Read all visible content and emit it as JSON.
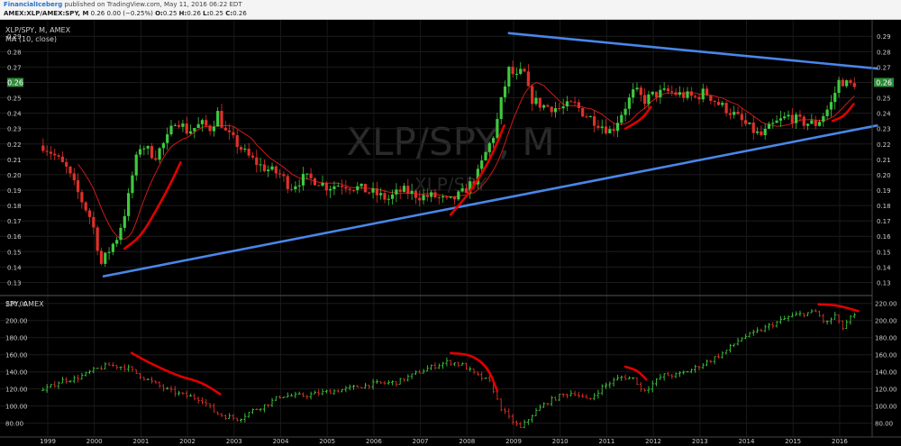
{
  "header": {
    "author": "FinancialIceberg",
    "published": "published on TradingView.com, May 11, 2016 06:22 EDT",
    "symbol": "AMEX:XLP/AMEX:SPY, M",
    "quote": "0.26 0.00 (−0.25%)",
    "o_label": "O:",
    "o_value": "0.25",
    "h_label": "H:",
    "h_value": "0.26",
    "l_label": "L:",
    "l_value": "0.25",
    "c_label": "C:",
    "c_value": "0.26"
  },
  "colors": {
    "background": "#000000",
    "up": "#3ec93e",
    "down": "#e0302a",
    "ma": "#d01818",
    "trendline": "#4a86e8",
    "annotation": "#e00000",
    "axis_text": "#cccccc",
    "price_tag": "#2e8b3a"
  },
  "chart_data": [
    {
      "type": "candlestick",
      "title": "XLP/SPY, M, AMEX",
      "subtitle": "MA (10, close)",
      "watermark": "XLP/SPY, M",
      "watermark_sub": "XLP/SPY",
      "y_ticks": [
        "0.13",
        "0.14",
        "0.15",
        "0.16",
        "0.17",
        "0.18",
        "0.19",
        "0.20",
        "0.21",
        "0.22",
        "0.23",
        "0.24",
        "0.25",
        "0.26",
        "0.27",
        "0.28",
        "0.29"
      ],
      "ylim": [
        0.125,
        0.296
      ],
      "last_price": "0.26",
      "x_ticks": [
        "1999",
        "2000",
        "2001",
        "2002",
        "2003",
        "2004",
        "2005",
        "2006",
        "2007",
        "2008",
        "2009",
        "2010",
        "2011",
        "2012",
        "2013",
        "2014",
        "2015",
        "2016"
      ],
      "series_anchors": [
        [
          1998.9,
          0.219
        ],
        [
          1999.1,
          0.214
        ],
        [
          1999.4,
          0.204
        ],
        [
          1999.7,
          0.185
        ],
        [
          1999.95,
          0.17
        ],
        [
          2000.15,
          0.142
        ],
        [
          2000.3,
          0.15
        ],
        [
          2000.5,
          0.16
        ],
        [
          2000.7,
          0.18
        ],
        [
          2000.85,
          0.205
        ],
        [
          2001.0,
          0.22
        ],
        [
          2001.3,
          0.212
        ],
        [
          2001.6,
          0.225
        ],
        [
          2001.75,
          0.237
        ],
        [
          2002.0,
          0.228
        ],
        [
          2002.3,
          0.233
        ],
        [
          2002.5,
          0.23
        ],
        [
          2002.65,
          0.24
        ],
        [
          2002.8,
          0.228
        ],
        [
          2003.0,
          0.222
        ],
        [
          2003.3,
          0.212
        ],
        [
          2003.6,
          0.205
        ],
        [
          2004.0,
          0.2
        ],
        [
          2004.2,
          0.192
        ],
        [
          2004.5,
          0.198
        ],
        [
          2004.8,
          0.196
        ],
        [
          2005.0,
          0.192
        ],
        [
          2005.3,
          0.194
        ],
        [
          2005.6,
          0.192
        ],
        [
          2006.0,
          0.188
        ],
        [
          2006.3,
          0.184
        ],
        [
          2006.6,
          0.19
        ],
        [
          2007.0,
          0.186
        ],
        [
          2007.3,
          0.186
        ],
        [
          2007.6,
          0.182
        ],
        [
          2007.9,
          0.188
        ],
        [
          2008.2,
          0.198
        ],
        [
          2008.4,
          0.214
        ],
        [
          2008.6,
          0.228
        ],
        [
          2008.75,
          0.25
        ],
        [
          2008.9,
          0.268
        ],
        [
          2009.1,
          0.262
        ],
        [
          2009.2,
          0.27
        ],
        [
          2009.35,
          0.25
        ],
        [
          2009.6,
          0.245
        ],
        [
          2010.0,
          0.243
        ],
        [
          2010.3,
          0.246
        ],
        [
          2010.5,
          0.24
        ],
        [
          2010.7,
          0.236
        ],
        [
          2011.1,
          0.228
        ],
        [
          2011.35,
          0.242
        ],
        [
          2011.6,
          0.255
        ],
        [
          2011.8,
          0.248
        ],
        [
          2012.0,
          0.252
        ],
        [
          2012.3,
          0.254
        ],
        [
          2012.6,
          0.252
        ],
        [
          2012.9,
          0.25
        ],
        [
          2013.1,
          0.254
        ],
        [
          2013.4,
          0.246
        ],
        [
          2013.7,
          0.24
        ],
        [
          2014.0,
          0.232
        ],
        [
          2014.3,
          0.225
        ],
        [
          2014.6,
          0.233
        ],
        [
          2014.9,
          0.238
        ],
        [
          2015.2,
          0.234
        ],
        [
          2015.5,
          0.233
        ],
        [
          2015.8,
          0.245
        ],
        [
          2016.0,
          0.262
        ],
        [
          2016.2,
          0.258
        ],
        [
          2016.35,
          0.26
        ]
      ],
      "trendlines": [
        {
          "from": [
            2000.2,
            0.134
          ],
          "to": [
            2016.8,
            0.232
          ]
        },
        {
          "from": [
            2008.9,
            0.292
          ],
          "to": [
            2016.8,
            0.269
          ]
        }
      ],
      "annotations": [
        [
          [
            2000.65,
            0.152
          ],
          [
            2001.0,
            0.16
          ],
          [
            2001.35,
            0.178
          ],
          [
            2001.65,
            0.195
          ],
          [
            2001.85,
            0.208
          ]
        ],
        [
          [
            2007.65,
            0.174
          ],
          [
            2008.1,
            0.19
          ],
          [
            2008.5,
            0.21
          ],
          [
            2008.8,
            0.232
          ]
        ],
        [
          [
            2011.4,
            0.23
          ],
          [
            2011.75,
            0.236
          ],
          [
            2011.95,
            0.244
          ]
        ],
        [
          [
            2015.85,
            0.235
          ],
          [
            2016.1,
            0.238
          ],
          [
            2016.3,
            0.246
          ]
        ]
      ]
    },
    {
      "type": "ohlc",
      "title": "SPY, AMEX",
      "y_ticks": [
        "80.00",
        "100.00",
        "120.00",
        "140.00",
        "160.00",
        "180.00",
        "200.00",
        "220.00"
      ],
      "ylim": [
        67,
        225
      ],
      "series_anchors": [
        [
          1998.9,
          118
        ],
        [
          1999.3,
          130
        ],
        [
          1999.6,
          132
        ],
        [
          2000.0,
          142
        ],
        [
          2000.3,
          148
        ],
        [
          2000.7,
          145
        ],
        [
          2001.0,
          135
        ],
        [
          2001.3,
          126
        ],
        [
          2001.6,
          118
        ],
        [
          2001.9,
          113
        ],
        [
          2002.3,
          108
        ],
        [
          2002.6,
          92
        ],
        [
          2002.8,
          88
        ],
        [
          2003.1,
          85
        ],
        [
          2003.4,
          95
        ],
        [
          2003.7,
          102
        ],
        [
          2004.0,
          112
        ],
        [
          2004.5,
          112
        ],
        [
          2004.8,
          115
        ],
        [
          2005.2,
          118
        ],
        [
          2005.6,
          122
        ],
        [
          2006.0,
          126
        ],
        [
          2006.5,
          128
        ],
        [
          2006.9,
          138
        ],
        [
          2007.2,
          145
        ],
        [
          2007.6,
          152
        ],
        [
          2007.9,
          148
        ],
        [
          2008.2,
          136
        ],
        [
          2008.5,
          128
        ],
        [
          2008.7,
          100
        ],
        [
          2008.9,
          86
        ],
        [
          2009.15,
          74
        ],
        [
          2009.4,
          90
        ],
        [
          2009.7,
          104
        ],
        [
          2010.0,
          112
        ],
        [
          2010.3,
          116
        ],
        [
          2010.6,
          106
        ],
        [
          2010.9,
          122
        ],
        [
          2011.3,
          134
        ],
        [
          2011.6,
          132
        ],
        [
          2011.75,
          118
        ],
        [
          2011.9,
          122
        ],
        [
          2012.2,
          136
        ],
        [
          2012.5,
          136
        ],
        [
          2012.8,
          142
        ],
        [
          2013.1,
          150
        ],
        [
          2013.5,
          162
        ],
        [
          2013.9,
          180
        ],
        [
          2014.2,
          186
        ],
        [
          2014.5,
          194
        ],
        [
          2014.9,
          204
        ],
        [
          2015.2,
          208
        ],
        [
          2015.5,
          210
        ],
        [
          2015.7,
          196
        ],
        [
          2015.9,
          206
        ],
        [
          2016.05,
          190
        ],
        [
          2016.2,
          202
        ],
        [
          2016.35,
          206
        ]
      ],
      "annotations": [
        [
          [
            2000.8,
            162
          ],
          [
            2001.2,
            150
          ],
          [
            2001.8,
            135
          ],
          [
            2002.3,
            128
          ],
          [
            2002.7,
            114
          ]
        ],
        [
          [
            2007.65,
            162
          ],
          [
            2008.1,
            160
          ],
          [
            2008.45,
            145
          ],
          [
            2008.65,
            118
          ]
        ],
        [
          [
            2011.4,
            146
          ],
          [
            2011.65,
            142
          ],
          [
            2011.85,
            131
          ]
        ],
        [
          [
            2015.55,
            219
          ],
          [
            2015.95,
            218
          ],
          [
            2016.4,
            211
          ]
        ]
      ]
    }
  ]
}
